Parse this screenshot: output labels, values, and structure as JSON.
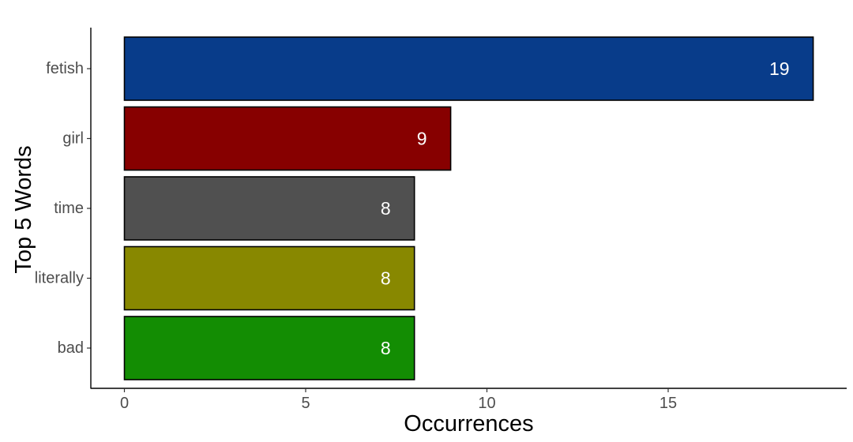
{
  "chart_data": {
    "type": "bar",
    "orientation": "horizontal",
    "categories": [
      "fetish",
      "girl",
      "time",
      "literally",
      "bad"
    ],
    "values": [
      19,
      9,
      8,
      8,
      8
    ],
    "colors": [
      "#083C8A",
      "#870000",
      "#505050",
      "#888800",
      "#138D03"
    ],
    "data_labels": [
      "19",
      "9",
      "8",
      "8",
      "8"
    ],
    "title": "",
    "xlabel": "Occurrences",
    "ylabel": "Top 5 Words",
    "xlim": [
      0,
      19
    ],
    "xticks": [
      0,
      5,
      10,
      15
    ],
    "xtick_labels": [
      "0",
      "5",
      "10",
      "15"
    ],
    "grid": false,
    "legend": "none",
    "bar_outline_color": "#000000",
    "data_label_color": "#FFFFFF"
  }
}
